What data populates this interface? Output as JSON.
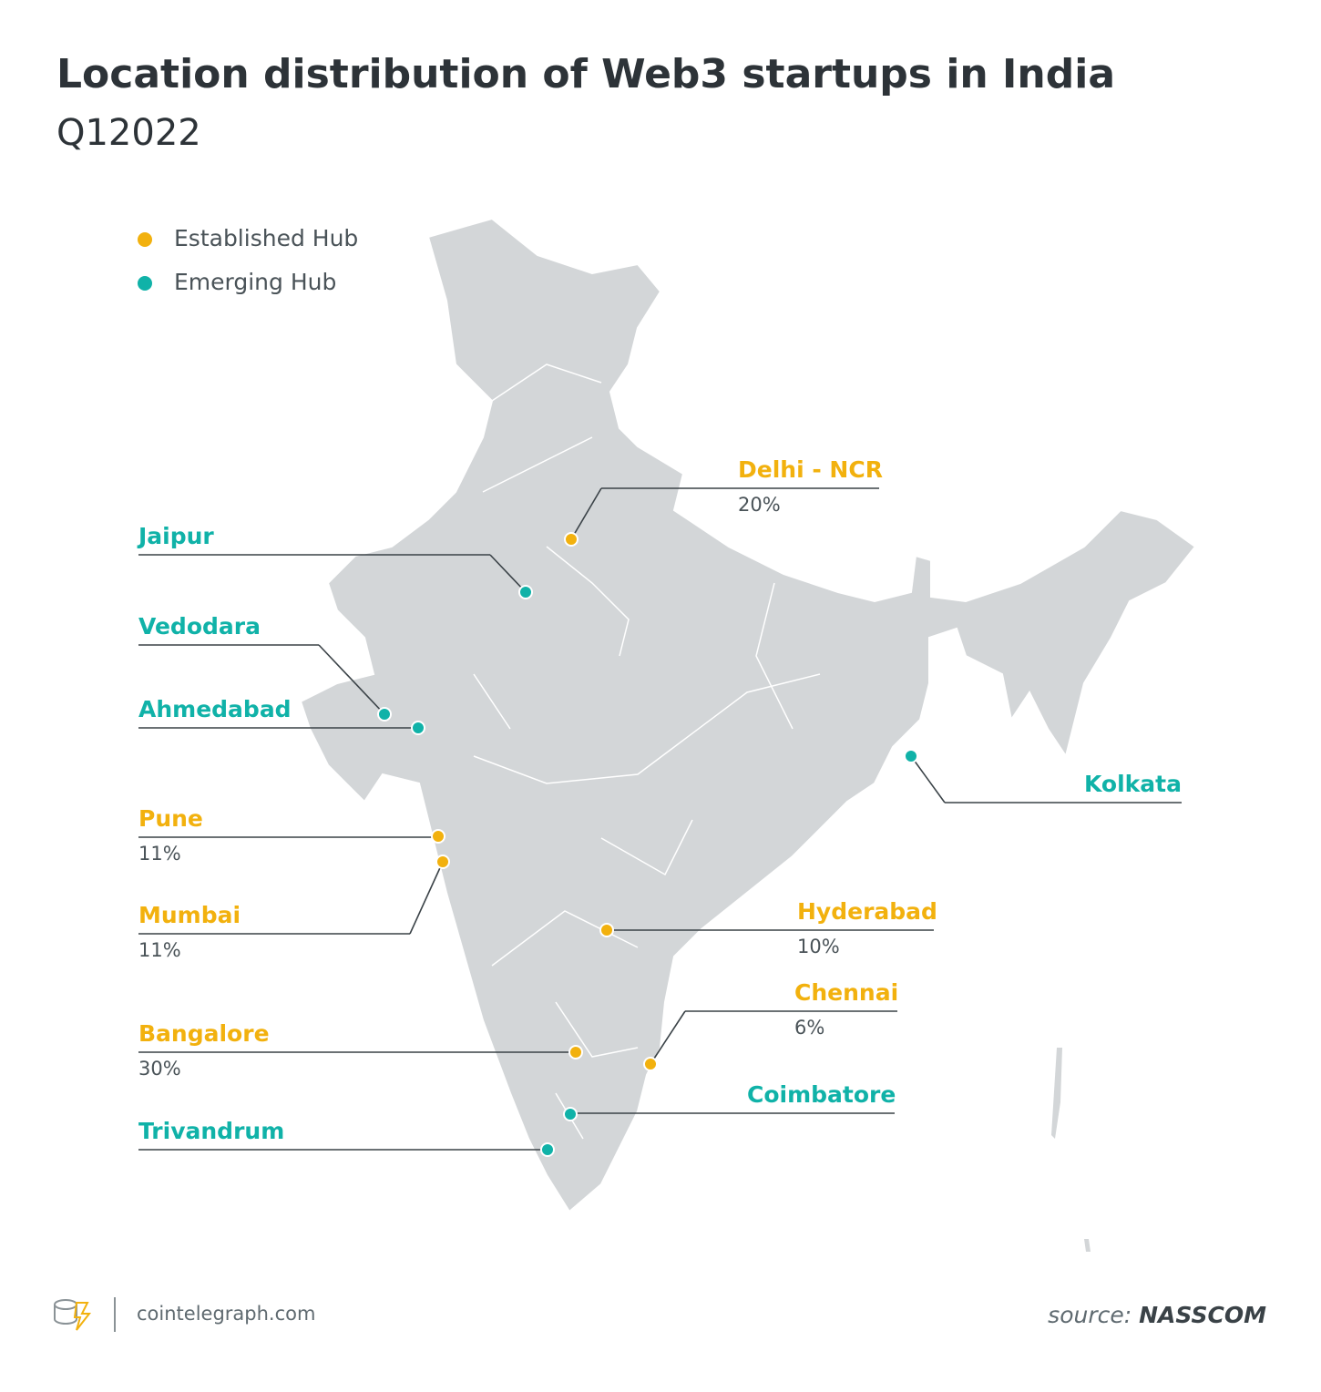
{
  "title": "Location distribution of Web3 startups in India",
  "subtitle": "Q12022",
  "legend": [
    {
      "label": "Established Hub",
      "color": "#f2b10e"
    },
    {
      "label": "Emerging Hub",
      "color": "#10b2a8"
    }
  ],
  "cities": [
    {
      "name": "Delhi - NCR",
      "share": "20%",
      "color": "#f2b10e"
    },
    {
      "name": "Jaipur",
      "color": "#10b2a8"
    },
    {
      "name": "Vedodara",
      "color": "#10b2a8"
    },
    {
      "name": "Ahmedabad",
      "color": "#10b2a8"
    },
    {
      "name": "Pune",
      "share": "11%",
      "color": "#f2b10e"
    },
    {
      "name": "Mumbai",
      "share": "11%",
      "color": "#f2b10e"
    },
    {
      "name": "Bangalore",
      "share": "30%",
      "color": "#f2b10e"
    },
    {
      "name": "Trivandrum",
      "color": "#10b2a8"
    },
    {
      "name": "Hyderabad",
      "share": "10%",
      "color": "#f2b10e"
    },
    {
      "name": "Chennai",
      "share": "6%",
      "color": "#f2b10e"
    },
    {
      "name": "Coimbatore",
      "color": "#10b2a8"
    },
    {
      "name": "Kolkata",
      "color": "#10b2a8"
    }
  ],
  "footer": {
    "site": "cointelegraph.com",
    "source_label": "source:",
    "source": "NASSCOM"
  }
}
